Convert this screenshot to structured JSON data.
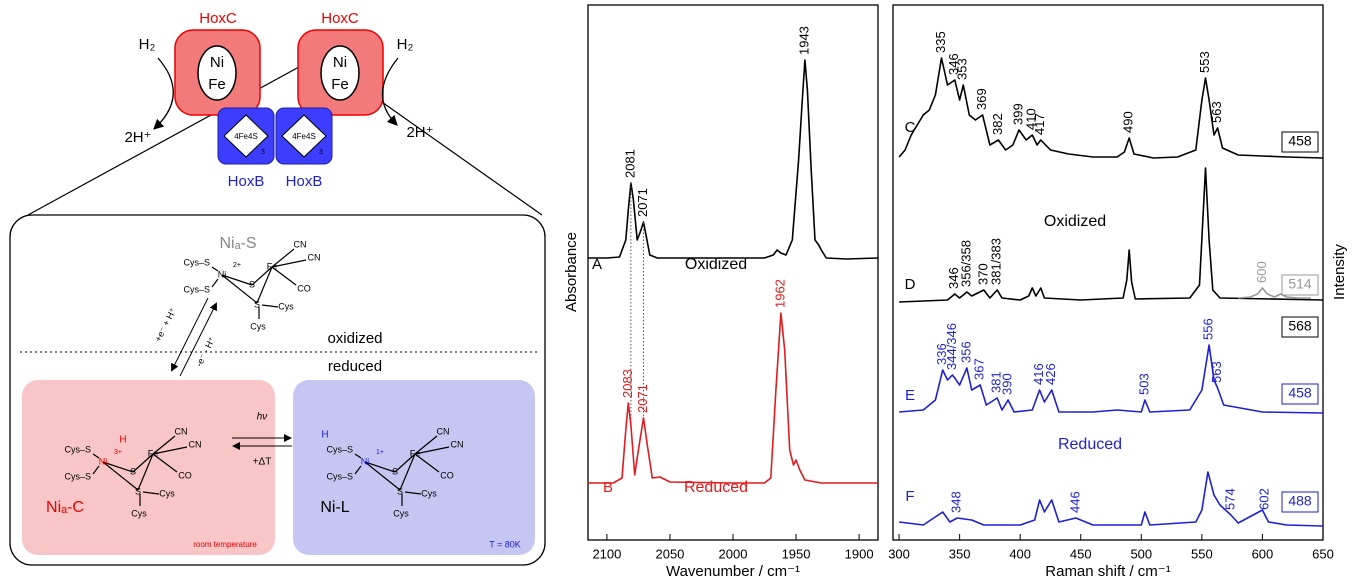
{
  "diagram": {
    "hoxc": [
      "HoxC",
      "HoxC"
    ],
    "hoxb": [
      "HoxB",
      "HoxB"
    ],
    "h2": [
      "H₂",
      "H₂"
    ],
    "protons": [
      "2H⁺",
      "2H⁺"
    ],
    "active_site": [
      [
        "Ni",
        "Fe"
      ],
      [
        "Ni",
        "Fe"
      ]
    ],
    "clusters": [
      [
        "4Fe4S",
        "3"
      ],
      [
        "4Fe4S",
        "3"
      ]
    ],
    "oxidized": "oxidized",
    "reduced": "reduced",
    "reduction": "+e⁻ + H⁺",
    "oxidation": "-e⁻ - H⁺",
    "light": "hν",
    "heat": "+ΔT",
    "molecules": [
      {
        "name": "Niₐ-S",
        "atoms": [
          "Cys–S",
          "Cys–S",
          "Ni",
          "2+",
          "S",
          "Fe",
          "CN",
          "CN",
          "CO",
          "S",
          "Cys",
          "Cys"
        ]
      },
      {
        "name": "Niₐ-C",
        "atoms": [
          "Cys–S",
          "Cys–S",
          "Ni",
          "3+",
          "S",
          "Fe",
          "CN",
          "CN",
          "CO",
          "S",
          "Cys",
          "Cys"
        ],
        "hydride": "H",
        "condition": "room temperature"
      },
      {
        "name": "Ni-L",
        "atoms": [
          "Cys–S",
          "Cys–S",
          "Ni",
          "1+",
          "S",
          "Fe",
          "CN",
          "CN",
          "CO",
          "S",
          "Cys",
          "Cys"
        ],
        "hydride": "H",
        "condition": "T = 80K"
      }
    ]
  },
  "chart_data": [
    {
      "type": "line",
      "x_label": "Wavenumber / cm⁻¹",
      "y_label": "Absorbance",
      "xlim": [
        2115,
        1885
      ],
      "xticks": [
        2100,
        2050,
        2000,
        1950,
        1900
      ],
      "ylim": [
        0,
        535
      ],
      "annotations": [
        "Oxidized",
        "Reduced"
      ],
      "series": [
        {
          "name": "A",
          "color": "#000000",
          "x": [
            2115,
            2100,
            2090,
            2085,
            2083,
            2081,
            2079,
            2076,
            2073,
            2071,
            2069,
            2066,
            2060,
            2040,
            2000,
            1975,
            1968,
            1965,
            1962,
            1958,
            1953,
            1948,
            1945,
            1943,
            1941,
            1938,
            1935,
            1932,
            1930,
            1926,
            1910,
            1885
          ],
          "values": [
            282,
            282,
            283,
            300,
            330,
            357,
            340,
            300,
            310,
            318,
            305,
            285,
            282,
            282,
            282,
            282,
            285,
            290,
            287,
            285,
            300,
            380,
            440,
            480,
            450,
            370,
            300,
            295,
            290,
            282,
            281,
            282
          ],
          "peaks": [
            2081,
            2071,
            1943
          ]
        },
        {
          "name": "B",
          "color": "#e41a1c",
          "x": [
            2115,
            2095,
            2088,
            2085,
            2083,
            2081,
            2078,
            2075,
            2071,
            2068,
            2064,
            2058,
            2050,
            2000,
            1975,
            1970,
            1966,
            1962,
            1959,
            1955,
            1952,
            1950,
            1947,
            1943,
            1930,
            1885
          ],
          "values": [
            57,
            57,
            62,
            110,
            137,
            115,
            65,
            90,
            122,
            95,
            62,
            63,
            58,
            57,
            57,
            62,
            150,
            227,
            190,
            90,
            75,
            80,
            70,
            60,
            57,
            57
          ],
          "peaks": [
            2083,
            2071,
            1962
          ]
        }
      ]
    },
    {
      "type": "line",
      "x_label": "Raman shift / cm⁻¹",
      "y_label": "Intensity",
      "xlim": [
        295,
        650
      ],
      "xticks": [
        300,
        350,
        400,
        450,
        500,
        550,
        600,
        650
      ],
      "ylim": [
        0,
        535
      ],
      "annotations": [
        "Oxidized",
        "Reduced"
      ],
      "series": [
        {
          "name": "C",
          "color": "#000000",
          "box": "458",
          "x": [
            300,
            305,
            310,
            315,
            320,
            325,
            330,
            335,
            340,
            346,
            350,
            353,
            358,
            363,
            369,
            375,
            382,
            388,
            394,
            399,
            405,
            410,
            414,
            417,
            425,
            440,
            460,
            480,
            486,
            490,
            494,
            510,
            530,
            545,
            550,
            553,
            556,
            560,
            563,
            567,
            580,
            600,
            620,
            650
          ],
          "values": [
            383,
            390,
            405,
            415,
            425,
            430,
            445,
            482,
            455,
            460,
            440,
            455,
            425,
            420,
            425,
            395,
            400,
            390,
            395,
            410,
            400,
            405,
            395,
            400,
            390,
            386,
            383,
            383,
            388,
            402,
            386,
            382,
            383,
            390,
            440,
            462,
            440,
            405,
            412,
            392,
            385,
            384,
            383,
            382
          ],
          "peaks": [
            335,
            346,
            353,
            369,
            382,
            399,
            410,
            417,
            490,
            553,
            563
          ]
        },
        {
          "name": "D",
          "color": "#000000",
          "box": "568",
          "x": [
            300,
            340,
            346,
            350,
            356,
            360,
            370,
            375,
            381,
            385,
            400,
            407,
            410,
            413,
            417,
            420,
            450,
            485,
            488,
            490,
            492,
            495,
            540,
            548,
            553,
            556,
            559,
            565,
            650
          ],
          "values": [
            238,
            240,
            246,
            242,
            248,
            244,
            250,
            242,
            250,
            242,
            240,
            244,
            252,
            244,
            252,
            242,
            240,
            242,
            260,
            290,
            258,
            241,
            242,
            255,
            372,
            300,
            250,
            242,
            240
          ],
          "peaks": [
            346,
            {
              "value": 356,
              "label": "356/358"
            },
            370,
            {
              "value": 381,
              "label": "381/383"
            }
          ]
        },
        {
          "name": "514",
          "color": "#999999",
          "x": [
            580,
            590,
            596,
            600,
            604,
            610,
            615,
            620,
            630,
            640
          ],
          "values": [
            242,
            243,
            246,
            252,
            246,
            243,
            246,
            243,
            242,
            242
          ],
          "peaks": [
            600
          ]
        },
        {
          "name": "E",
          "color": "#1f1fd6",
          "box": "458",
          "x": [
            300,
            320,
            330,
            336,
            340,
            344,
            346,
            350,
            356,
            360,
            367,
            372,
            381,
            385,
            390,
            395,
            410,
            416,
            420,
            426,
            432,
            460,
            480,
            500,
            503,
            507,
            540,
            550,
            556,
            560,
            563,
            568,
            600,
            650
          ],
          "values": [
            128,
            130,
            140,
            170,
            160,
            165,
            162,
            155,
            172,
            150,
            155,
            135,
            142,
            130,
            140,
            128,
            130,
            150,
            138,
            150,
            128,
            128,
            130,
            128,
            140,
            128,
            130,
            150,
            195,
            160,
            152,
            135,
            128,
            127
          ],
          "peaks": [
            336,
            {
              "value": 344,
              "label": "344/346"
            },
            356,
            367,
            381,
            390,
            416,
            426,
            503,
            556,
            563
          ]
        },
        {
          "name": "F",
          "color": "#1f1fd6",
          "box": "488",
          "x": [
            300,
            320,
            336,
            342,
            348,
            360,
            370,
            400,
            412,
            416,
            420,
            426,
            432,
            446,
            460,
            500,
            503,
            507,
            545,
            550,
            555,
            560,
            565,
            574,
            580,
            600,
            605,
            620,
            650
          ],
          "values": [
            18,
            15,
            28,
            18,
            22,
            20,
            15,
            15,
            20,
            40,
            28,
            40,
            18,
            22,
            15,
            15,
            28,
            15,
            18,
            30,
            68,
            45,
            35,
            25,
            17,
            30,
            18,
            15,
            14
          ],
          "peaks": [
            348,
            446,
            574,
            602
          ]
        }
      ]
    }
  ]
}
